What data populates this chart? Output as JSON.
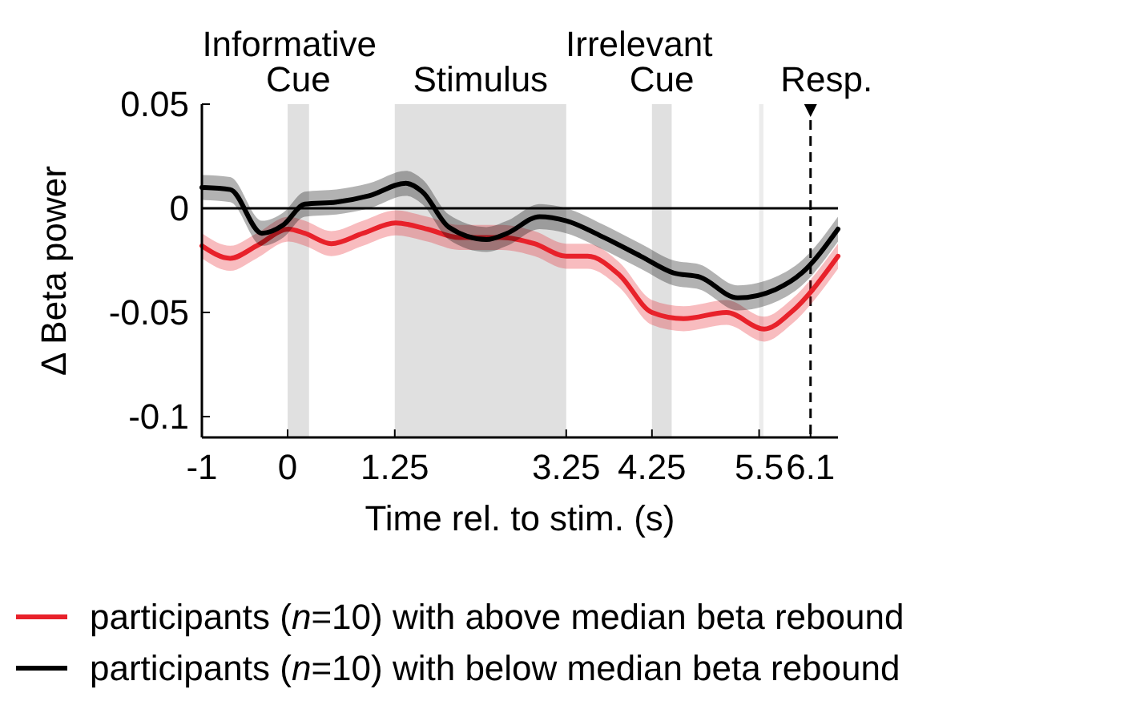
{
  "chart_data": {
    "type": "line",
    "xlabel": "Time rel. to stim. (s)",
    "ylabel": "Δ Beta power",
    "xlim": [
      -1,
      6.42
    ],
    "xticks": [
      -1,
      0,
      1.25,
      3.25,
      4.25,
      5.5,
      6.1
    ],
    "ylim": [
      -0.11,
      0.05
    ],
    "yticks": [
      0.05,
      0,
      -0.05,
      -0.1
    ],
    "legend": "bottom",
    "line_style": "solid",
    "marker": "none",
    "bands": [
      {
        "axis": "x",
        "from": 0,
        "to": 0.25,
        "label": "Informative\nCue",
        "color": "#e0e0e0"
      },
      {
        "axis": "x",
        "from": 1.25,
        "to": 3.25,
        "label": "Stimulus",
        "color": "#e0e0e0"
      },
      {
        "axis": "x",
        "from": 4.25,
        "to": 4.48,
        "label": "Irrelevant\nCue",
        "color": "#e0e0e0"
      },
      {
        "axis": "x",
        "from": 5.5,
        "to": 5.55,
        "color": "#ececec"
      }
    ],
    "ref_lines": [
      {
        "axis": "y",
        "value": 0,
        "color": "#000000",
        "line_style": "solid"
      },
      {
        "axis": "x",
        "value": 6.1,
        "label": "Resp.",
        "color": "#000000",
        "line_style": "dashed"
      }
    ],
    "series": [
      {
        "name": "participants (n=10) with above median beta rebound",
        "color": "#e8212a",
        "x": [
          -1,
          -0.67,
          -0.36,
          0.01,
          0.2,
          0.51,
          0.88,
          1.26,
          1.63,
          2.0,
          2.5,
          2.88,
          3.25,
          3.5,
          3.87,
          4.25,
          4.62,
          5.12,
          5.56,
          5.87,
          6.42
        ],
        "values": [
          -0.018,
          -0.024,
          -0.018,
          -0.01,
          -0.012,
          -0.017,
          -0.012,
          -0.007,
          -0.01,
          -0.014,
          -0.014,
          -0.017,
          -0.023,
          -0.023,
          -0.032,
          -0.05,
          -0.053,
          -0.05,
          -0.058,
          -0.05,
          -0.023
        ],
        "lower": [
          -0.024,
          -0.03,
          -0.024,
          -0.016,
          -0.018,
          -0.023,
          -0.018,
          -0.013,
          -0.016,
          -0.02,
          -0.02,
          -0.023,
          -0.029,
          -0.029,
          -0.038,
          -0.056,
          -0.059,
          -0.056,
          -0.064,
          -0.056,
          -0.029
        ],
        "upper": [
          -0.012,
          -0.018,
          -0.012,
          -0.004,
          -0.006,
          -0.011,
          -0.006,
          -0.001,
          -0.004,
          -0.008,
          -0.008,
          -0.011,
          -0.017,
          -0.017,
          -0.026,
          -0.044,
          -0.047,
          -0.044,
          -0.052,
          -0.044,
          -0.017
        ]
      },
      {
        "name": "participants (n=10) with below median beta rebound",
        "color": "#000000",
        "x": [
          -1,
          -0.67,
          -0.3,
          -0.05,
          0.2,
          0.57,
          0.95,
          1.38,
          1.57,
          1.88,
          2.32,
          2.56,
          2.94,
          3.25,
          3.69,
          4.12,
          4.5,
          4.81,
          5.25,
          5.69,
          6.0,
          6.42
        ],
        "values": [
          0.01,
          0.009,
          -0.012,
          -0.008,
          0.002,
          0.003,
          0.006,
          0.012,
          0.008,
          -0.009,
          -0.015,
          -0.012,
          -0.004,
          -0.006,
          -0.014,
          -0.023,
          -0.031,
          -0.033,
          -0.043,
          -0.039,
          -0.031,
          -0.01
        ],
        "lower": [
          0.004,
          0.003,
          -0.018,
          -0.014,
          -0.004,
          -0.003,
          0.0,
          0.006,
          0.002,
          -0.015,
          -0.021,
          -0.018,
          -0.01,
          -0.012,
          -0.02,
          -0.029,
          -0.037,
          -0.039,
          -0.049,
          -0.045,
          -0.037,
          -0.016
        ],
        "upper": [
          0.016,
          0.015,
          -0.006,
          -0.002,
          0.008,
          0.009,
          0.012,
          0.018,
          0.014,
          -0.003,
          -0.009,
          -0.006,
          0.002,
          0.0,
          -0.008,
          -0.017,
          -0.025,
          -0.027,
          -0.037,
          -0.033,
          -0.025,
          -0.004
        ]
      }
    ]
  }
}
